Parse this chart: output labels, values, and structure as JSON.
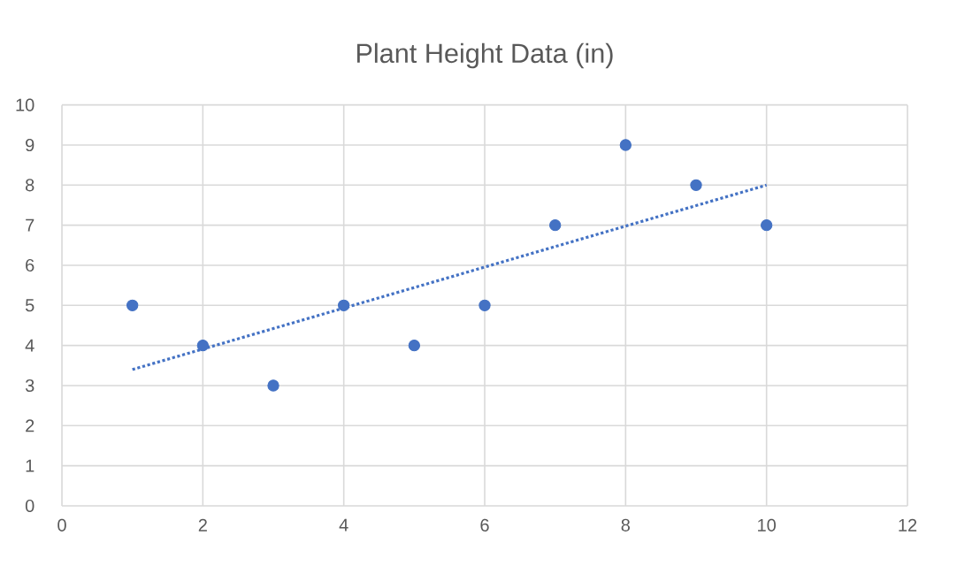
{
  "chart_data": {
    "type": "scatter",
    "title": "Plant Height Data (in)",
    "series": [
      {
        "color": "#4472c4",
        "marker": "circle",
        "x": [
          1,
          2,
          3,
          4,
          5,
          6,
          7,
          8,
          9,
          10
        ],
        "values": [
          5,
          4,
          3,
          5,
          4,
          5,
          7,
          9,
          8,
          7
        ]
      },
      {
        "type": "line",
        "color": "#4472c4",
        "marker": "none",
        "line_style": "dotted",
        "x": [
          1,
          10
        ],
        "values": [
          3.4,
          8.0
        ]
      }
    ],
    "xlim": [
      0,
      12
    ],
    "xticks": [
      0,
      2,
      4,
      6,
      8,
      10,
      12
    ],
    "ylim": [
      0,
      10
    ],
    "yticks": [
      0,
      1,
      2,
      3,
      4,
      5,
      6,
      7,
      8,
      9,
      10
    ],
    "grid": true
  }
}
